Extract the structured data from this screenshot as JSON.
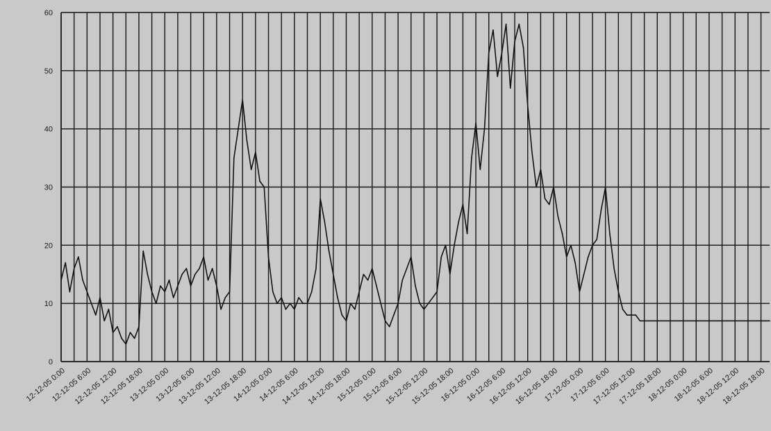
{
  "chart_data": {
    "type": "line",
    "title": "",
    "xlabel": "",
    "ylabel": "",
    "ylim": [
      0,
      60
    ],
    "y_ticks": [
      0,
      10,
      20,
      30,
      40,
      50,
      60
    ],
    "y_tick_labels": [
      "0",
      "10",
      "20",
      "30",
      "40",
      "50",
      "60"
    ],
    "grid": true,
    "legend": "none",
    "x_tick_labels": [
      "12-12-05 0:00",
      "12-12-05 6:00",
      "12-12-05 12:00",
      "12-12-05 18:00",
      "13-12-05 0:00",
      "13-12-05 6:00",
      "13-12-05 12:00",
      "13-12-05 18:00",
      "14-12-05 0:00",
      "14-12-05 6:00",
      "14-12-05 12:00",
      "14-12-05 18:00",
      "15-12-05 0:00",
      "15-12-05 6:00",
      "15-12-05 12:00",
      "15-12-05 18:00",
      "16-12-05 0:00",
      "16-12-05 6:00",
      "16-12-05 12:00",
      "16-12-05 18:00",
      "17-12-05 0:00",
      "17-12-05 6:00",
      "17-12-05 12:00",
      "17-12-05 18:00",
      "18-12-05 0:00",
      "18-12-05 6:00",
      "18-12-05 12:00",
      "18-12-05 18:00"
    ],
    "x_hours_range": [
      0,
      164
    ],
    "series": [
      {
        "name": "",
        "color": "#111111",
        "x_hours": [
          0,
          1,
          2,
          3,
          4,
          5,
          6,
          7,
          8,
          9,
          10,
          11,
          12,
          13,
          14,
          15,
          16,
          17,
          18,
          19,
          20,
          21,
          22,
          23,
          24,
          25,
          26,
          27,
          28,
          29,
          30,
          31,
          32,
          33,
          34,
          35,
          36,
          37,
          38,
          39,
          40,
          41,
          42,
          43,
          44,
          45,
          46,
          47,
          48,
          49,
          50,
          51,
          52,
          53,
          54,
          55,
          56,
          57,
          58,
          59,
          60,
          61,
          62,
          63,
          64,
          65,
          66,
          67,
          68,
          69,
          70,
          71,
          72,
          73,
          74,
          75,
          76,
          77,
          78,
          79,
          80,
          81,
          82,
          83,
          84,
          85,
          86,
          87,
          88,
          89,
          90,
          91,
          92,
          93,
          94,
          95,
          96,
          97,
          98,
          99,
          100,
          101,
          102,
          103,
          104,
          105,
          106,
          107,
          108,
          109,
          110,
          111,
          112,
          113,
          114,
          115,
          116,
          117,
          118,
          119,
          120,
          121,
          122,
          123,
          124,
          125,
          126,
          127,
          128,
          129,
          130,
          131,
          132,
          133,
          134,
          135,
          136,
          137,
          138,
          139,
          140,
          141,
          142,
          143,
          144,
          145,
          146,
          147,
          148,
          149,
          150,
          151,
          152,
          153,
          154,
          155,
          156,
          157,
          158,
          159,
          160,
          161,
          162,
          163,
          164
        ],
        "values": [
          14,
          17,
          12,
          16,
          18,
          14,
          12,
          10,
          8,
          11,
          7,
          9,
          5,
          6,
          4,
          3,
          5,
          4,
          6,
          19,
          15,
          12,
          10,
          13,
          12,
          14,
          11,
          13,
          15,
          16,
          13,
          15,
          16,
          18,
          14,
          16,
          13,
          9,
          11,
          12,
          35,
          40,
          45,
          38,
          33,
          36,
          31,
          30,
          18,
          12,
          10,
          11,
          9,
          10,
          9,
          11,
          10,
          10,
          12,
          16,
          28,
          24,
          19,
          15,
          11,
          8,
          7,
          10,
          9,
          12,
          15,
          14,
          16,
          13,
          10,
          7,
          6,
          8,
          10,
          14,
          16,
          18,
          13,
          10,
          9,
          10,
          11,
          12,
          18,
          20,
          15,
          20,
          24,
          27,
          22,
          35,
          41,
          33,
          40,
          53,
          57,
          49,
          53,
          58,
          47,
          55,
          58,
          54,
          44,
          36,
          30,
          33,
          28,
          27,
          30,
          25,
          22,
          18,
          20,
          17,
          12,
          15,
          18,
          20,
          21,
          26,
          30,
          22,
          16,
          12,
          9,
          8,
          8,
          8,
          7,
          7,
          7,
          7,
          7,
          7,
          7,
          7,
          7,
          7,
          7,
          7,
          7,
          7,
          7,
          7,
          7,
          7,
          7,
          7,
          7,
          7,
          7,
          7,
          7,
          7,
          7,
          7,
          7,
          7,
          7
        ]
      }
    ]
  }
}
